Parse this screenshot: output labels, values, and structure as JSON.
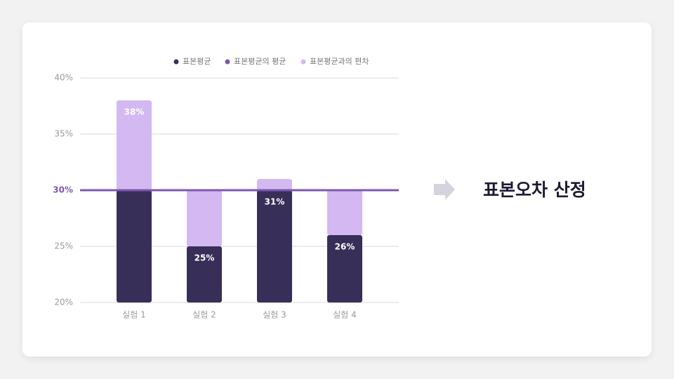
{
  "chart_data": {
    "type": "bar",
    "categories": [
      "실험 1",
      "실험 2",
      "실험 3",
      "실험 4"
    ],
    "series": [
      {
        "name": "표본평균",
        "color": "#372f58",
        "values": [
          38,
          25,
          31,
          26
        ],
        "value_labels": [
          "38%",
          "25%",
          "31%",
          "26%"
        ]
      },
      {
        "name": "표본평균의 평균",
        "color": "#7e57b0",
        "value": 30
      },
      {
        "name": "표본평균과의 편차",
        "color": "#d3b8f2",
        "values": [
          8,
          -5,
          1,
          -4
        ]
      }
    ],
    "ylim": [
      20,
      40
    ],
    "yticks": [
      {
        "value": 20,
        "label": "20%"
      },
      {
        "value": 25,
        "label": "25%"
      },
      {
        "value": 30,
        "label": "30%"
      },
      {
        "value": 35,
        "label": "35%"
      },
      {
        "value": 40,
        "label": "40%"
      }
    ],
    "grid": true
  },
  "callout": "표본오차 산정"
}
